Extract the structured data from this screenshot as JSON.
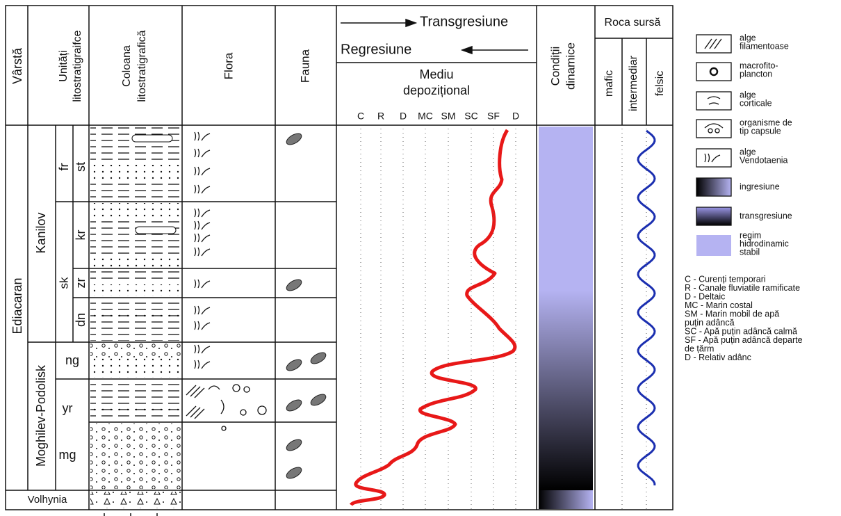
{
  "header": {
    "age": "Vârstă",
    "units": [
      "Unități",
      "litostratigraifce"
    ],
    "column": [
      "Coloana",
      "litostratigrafică"
    ],
    "flora": "Flora",
    "fauna": "Fauna",
    "transgression": "Transgresiune",
    "regression": "Regresiune",
    "environment": [
      "Mediu",
      "depozițional"
    ],
    "environment_codes": [
      "C",
      "R",
      "D",
      "MC",
      "SM",
      "SC",
      "SF",
      "D"
    ],
    "dynamics": [
      "Condiții",
      "dinamice"
    ],
    "source_rock": "Roca sursă",
    "source_types": [
      "mafic",
      "intermediar",
      "felsic"
    ]
  },
  "units": {
    "age": "Ediacaran",
    "lower_age": "Volhynia",
    "formations": [
      "Kanilov",
      "Moghilev-Podolisk"
    ],
    "subformation": "sk",
    "members": [
      "fr",
      "st",
      "kr",
      "zr",
      "dn",
      "ng",
      "yr",
      "mg"
    ]
  },
  "legend": [
    [
      "alge",
      "filamentoase"
    ],
    [
      "macrofito-",
      "plancton"
    ],
    [
      "alge",
      "corticale"
    ],
    [
      "organisme de",
      "tip capsule"
    ],
    [
      "alge",
      "Vendotaenia"
    ],
    [
      "ingresiune"
    ],
    [
      "transgresiune"
    ],
    [
      "regim",
      "hidrodinamic",
      "stabil"
    ]
  ],
  "abbreviations": [
    [
      "C - Curenți temporari"
    ],
    [
      "R - Canale fluviatile ramificate"
    ],
    [
      "D - Deltaic"
    ],
    [
      "MC - Marin costal"
    ],
    [
      "SM - Marin mobil de apă",
      "puțin adâncă"
    ],
    [
      "SC - Apă puțin adâncă calmă"
    ],
    [
      "SF - Apă puțin adâncă departe",
      "de țărm"
    ],
    [
      "D - Relativ adânc"
    ]
  ]
}
